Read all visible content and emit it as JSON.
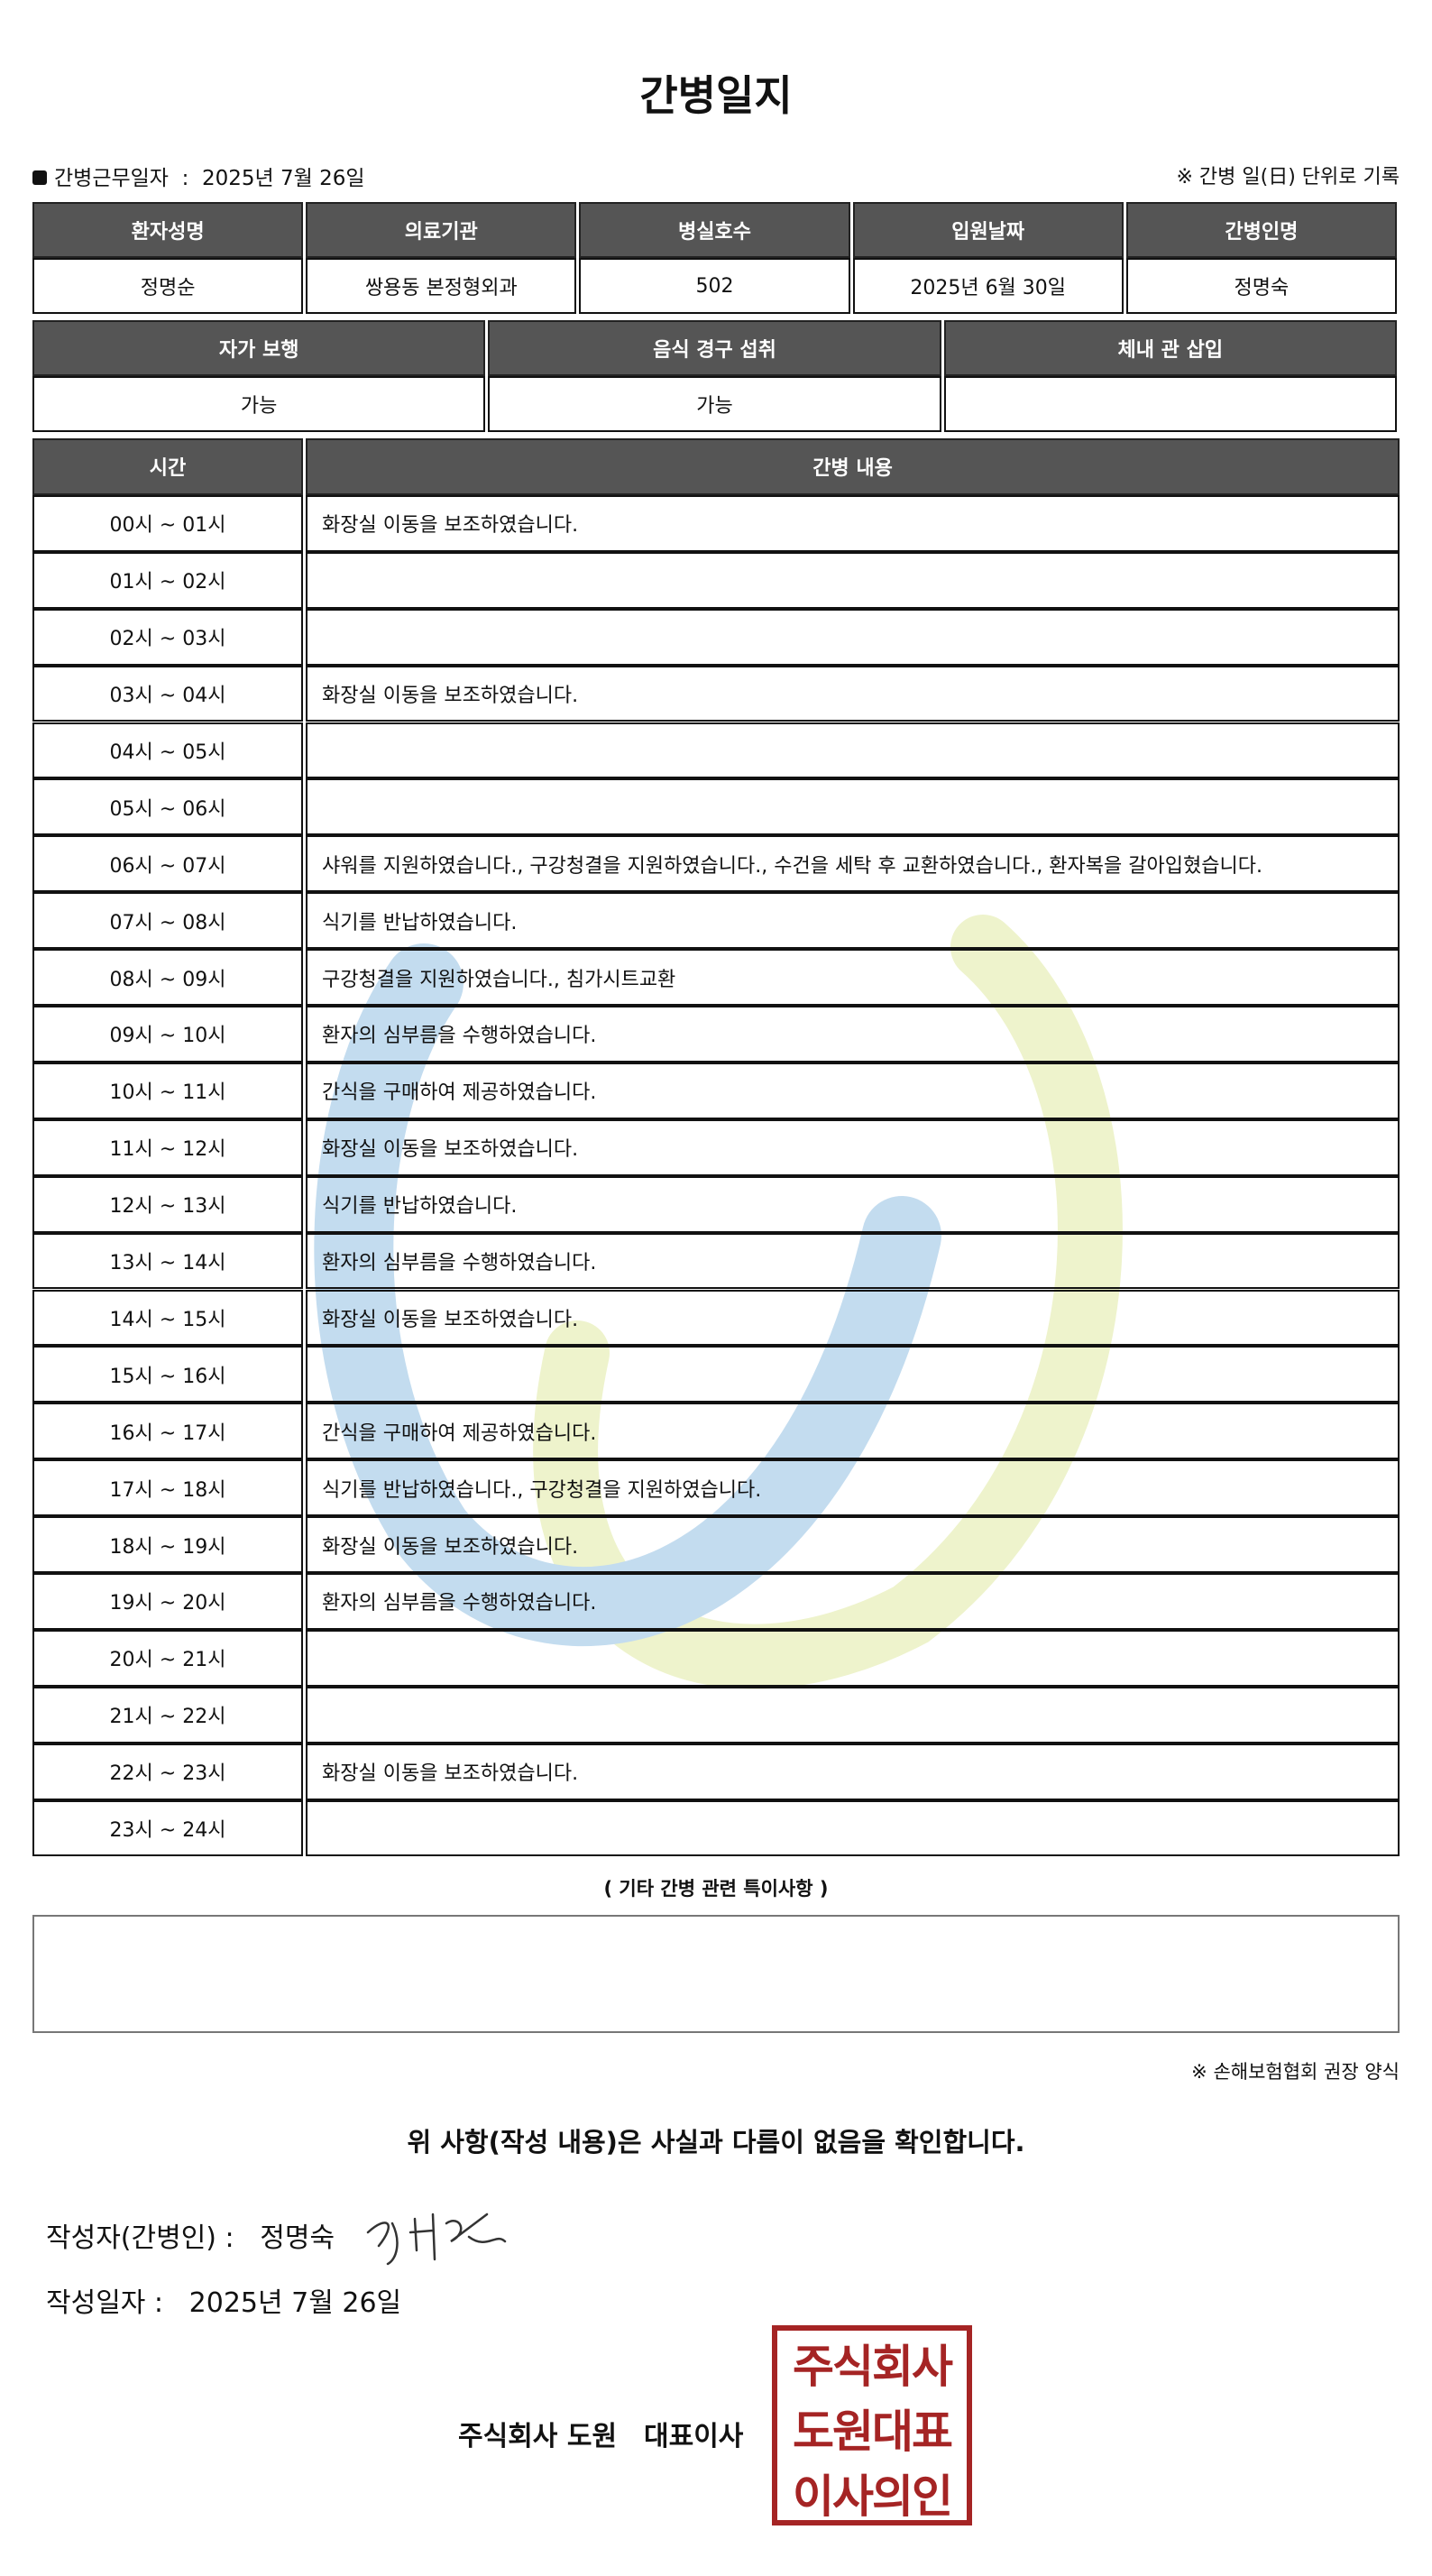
{
  "title": "간병일지",
  "work_date": {
    "label": "간병근무일자",
    "separator": ":",
    "value": "2025년 7월 26일"
  },
  "note_top": "※ 간병 일(日) 단위로 기록",
  "info_table": {
    "headers": [
      "환자성명",
      "의료기관",
      "병실호수",
      "입원날짜",
      "간병인명"
    ],
    "values": [
      "정명순",
      "쌍용동 본정형외과",
      "502",
      "2025년 6월 30일",
      "정명숙"
    ]
  },
  "status_table": {
    "headers": [
      "자가 보행",
      "음식 경구 섭취",
      "체내 관 삽입"
    ],
    "values": [
      "가능",
      "가능",
      null
    ]
  },
  "log_table": {
    "headers": [
      "시간",
      "간병 내용"
    ],
    "rows": [
      [
        "00시 ~ 01시",
        "화장실 이동을 보조하였습니다."
      ],
      [
        "01시 ~ 02시",
        null
      ],
      [
        "02시 ~ 03시",
        null
      ],
      [
        "03시 ~ 04시",
        "화장실 이동을 보조하였습니다."
      ],
      [
        "04시 ~ 05시",
        null
      ],
      [
        "05시 ~ 06시",
        null
      ],
      [
        "06시 ~ 07시",
        "샤워를 지원하였습니다., 구강청결을 지원하였습니다., 수건을 세탁 후 교환하였습니다., 환자복을 갈아입혔습니다."
      ],
      [
        "07시 ~ 08시",
        "식기를 반납하였습니다."
      ],
      [
        "08시 ~ 09시",
        "구강청결을 지원하였습니다., 침가시트교환"
      ],
      [
        "09시 ~ 10시",
        "환자의 심부름을 수행하였습니다."
      ],
      [
        "10시 ~ 11시",
        "간식을 구매하여 제공하였습니다."
      ],
      [
        "11시 ~ 12시",
        "화장실 이동을 보조하였습니다."
      ],
      [
        "12시 ~ 13시",
        "식기를 반납하였습니다."
      ],
      [
        "13시 ~ 14시",
        "환자의 심부름을 수행하였습니다."
      ],
      [
        "14시 ~ 15시",
        "화장실 이동을 보조하였습니다."
      ],
      [
        "15시 ~ 16시",
        null
      ],
      [
        "16시 ~ 17시",
        "간식을 구매하여 제공하였습니다."
      ],
      [
        "17시 ~ 18시",
        "식기를 반납하였습니다., 구강청결을 지원하였습니다."
      ],
      [
        "18시 ~ 19시",
        "화장실 이동을 보조하였습니다."
      ],
      [
        "19시 ~ 20시",
        "환자의 심부름을 수행하였습니다."
      ],
      [
        "20시 ~ 21시",
        null
      ],
      [
        "21시 ~ 22시",
        null
      ],
      [
        "22시 ~ 23시",
        "화장실 이동을 보조하였습니다."
      ],
      [
        "23시 ~ 24시",
        null
      ]
    ]
  },
  "remarks_title": "( 기타 간병 관련 특이사항 )",
  "footnote": "※ 손해보험협회 권장 양식",
  "confirmation": "위 사항(작성 내용)은 사실과 다름이 없음을 확인합니다.",
  "author": {
    "label": "작성자(간병인) :",
    "name": "정명숙"
  },
  "written_date": {
    "label": "작성일자 :",
    "value": "2025년 7월 26일"
  },
  "company": "주식회사 도원",
  "position": "대표이사",
  "seal": [
    "주식회사",
    "도원대표",
    "이사의인"
  ]
}
